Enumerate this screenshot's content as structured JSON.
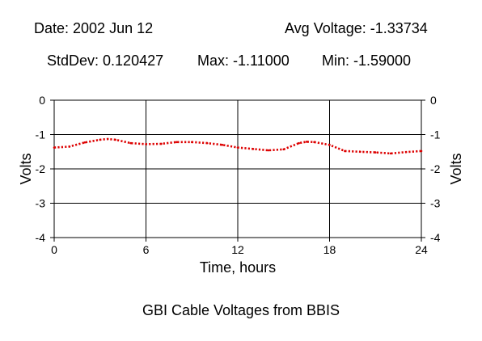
{
  "header": {
    "date": "Date: 2002 Jun 12",
    "avg": "Avg Voltage: -1.33734",
    "stddev": "StdDev: 0.120427",
    "max": "Max: -1.11000",
    "min": "Min: -1.59000"
  },
  "caption": "GBI Cable Voltages from BBIS",
  "chart_data": {
    "type": "line",
    "title": "",
    "xlabel": "Time, hours",
    "ylabel": "Volts",
    "xlim": [
      0,
      24
    ],
    "ylim": [
      -4,
      0
    ],
    "x_ticks": [
      0,
      6,
      12,
      18,
      24
    ],
    "y_ticks": [
      0,
      -1,
      -2,
      -3,
      -4
    ],
    "grid": true,
    "series": [
      {
        "color": "#dd0000",
        "style": "dotted",
        "x": [
          0,
          1,
          2,
          3,
          3.5,
          4,
          5,
          6,
          7,
          8,
          9,
          10,
          11,
          12,
          13,
          14,
          15,
          16,
          16.5,
          17,
          18,
          19,
          20,
          21,
          22,
          23,
          24
        ],
        "y": [
          -1.38,
          -1.35,
          -1.23,
          -1.15,
          -1.13,
          -1.15,
          -1.25,
          -1.28,
          -1.27,
          -1.22,
          -1.22,
          -1.25,
          -1.3,
          -1.38,
          -1.42,
          -1.46,
          -1.43,
          -1.25,
          -1.21,
          -1.22,
          -1.3,
          -1.48,
          -1.5,
          -1.52,
          -1.55,
          -1.51,
          -1.48
        ]
      }
    ]
  }
}
